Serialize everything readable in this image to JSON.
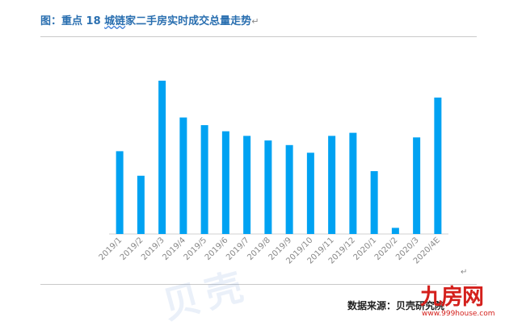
{
  "title": {
    "prefix": "图：重点 18 ",
    "squiggle": "城链",
    "rest": "家二手房实时成交总量走势",
    "mark": "↵"
  },
  "source_label": "数据来源：贝壳研究院",
  "watermark": "贝壳",
  "logo": {
    "text": "九房网",
    "url": "www.999house.com"
  },
  "return_mark": "↵",
  "colors": {
    "bar": "#00a2f2",
    "title": "#2a6fb0",
    "logo": "#d4201c"
  },
  "chart_data": {
    "type": "bar",
    "title": "",
    "xlabel": "",
    "ylabel": "",
    "categories": [
      "2019/1",
      "2019/2",
      "2019/3",
      "2019/4",
      "2019/5",
      "2019/6",
      "2019/7",
      "2019/8",
      "2019/9",
      "2019/10",
      "2019/11",
      "2019/12",
      "2020/1",
      "2020/2",
      "2020/3",
      "2020/4E"
    ],
    "values": [
      54,
      38,
      100,
      76,
      71,
      67,
      64,
      61,
      58,
      53,
      64,
      66,
      41,
      4,
      63,
      89
    ],
    "ylim": [
      0,
      100
    ],
    "grid": false,
    "legend": "none"
  }
}
